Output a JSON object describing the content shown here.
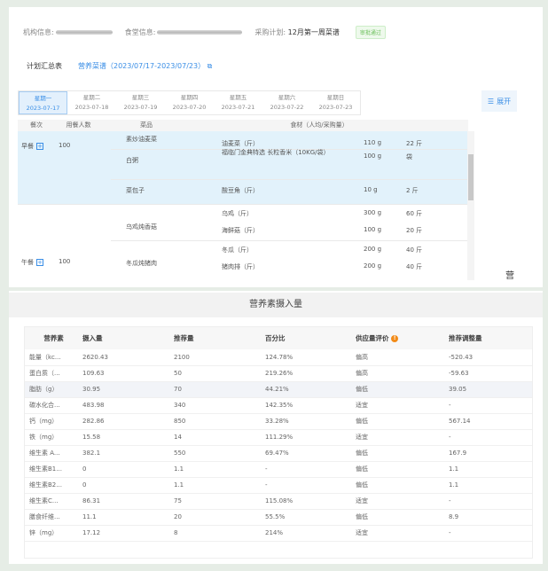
{
  "header": {
    "org_label": "机构信息:",
    "canteen_label": "食堂信息:",
    "plan_label": "采购计划:",
    "plan_value": "12月第一周菜谱",
    "status_badge": "审批通过"
  },
  "title_row": {
    "title": "计划汇总表",
    "link": "营养菜谱（2023/07/17-2023/07/23）",
    "link_icon": "external-link-icon"
  },
  "days": [
    {
      "name": "星期一",
      "date": "2023-07-17",
      "active": true
    },
    {
      "name": "星期二",
      "date": "2023-07-18"
    },
    {
      "name": "星期三",
      "date": "2023-07-19"
    },
    {
      "name": "星期四",
      "date": "2023-07-20"
    },
    {
      "name": "星期五",
      "date": "2023-07-21"
    },
    {
      "name": "星期六",
      "date": "2023-07-22"
    },
    {
      "name": "星期日",
      "date": "2023-07-23"
    }
  ],
  "expand_label": "展开",
  "meal_table": {
    "headers": [
      "餐次",
      "用餐人数",
      "菜品",
      "食材（人均/采购量）"
    ],
    "breakfast": {
      "meal": "早餐",
      "count": "100",
      "dishes": [
        {
          "dish": "素炒油麦菜",
          "items": [
            [
              "油麦菜（斤）",
              "110 g",
              "22 斤"
            ]
          ]
        },
        {
          "dish": "白粥",
          "items": [
            [
              "福临门金典特选 长粒香米（10KG/袋）",
              "100 g",
              "袋"
            ]
          ]
        },
        {
          "dish": "菜包子",
          "items": [
            [
              "酸豆角（斤）",
              "10 g",
              "2 斤"
            ]
          ]
        }
      ]
    },
    "lunch": {
      "meal": "午餐",
      "count": "100",
      "dishes": [
        {
          "dish": "乌鸡炖香菇",
          "items": [
            [
              "乌鸡（斤）",
              "300 g",
              "60 斤"
            ],
            [
              "海鲜菇（斤）",
              "100 g",
              "20 斤"
            ]
          ]
        },
        {
          "dish": "冬瓜炖猪肉",
          "items": [
            [
              "冬瓜（斤）",
              "200 g",
              "40 斤"
            ],
            [
              "猪肉排（斤）",
              "200 g",
              "40 斤"
            ]
          ]
        }
      ]
    }
  },
  "side_char": "营",
  "nutrition": {
    "title": "营养素摄入量",
    "headers": [
      "营养素",
      "摄入量",
      "推荐量",
      "百分比",
      "供应量评价",
      "推荐调整量"
    ],
    "rows": [
      [
        "能量（kc...",
        "2620.43",
        "2100",
        "124.78%",
        "偏高",
        "-520.43"
      ],
      [
        "蛋白质（...",
        "109.63",
        "50",
        "219.26%",
        "偏高",
        "-59.63"
      ],
      [
        "脂肪（g）",
        "30.95",
        "70",
        "44.21%",
        "偏低",
        "39.05"
      ],
      [
        "碳水化合...",
        "483.98",
        "340",
        "142.35%",
        "适宜",
        "-"
      ],
      [
        "钙（mg）",
        "282.86",
        "850",
        "33.28%",
        "偏低",
        "567.14"
      ],
      [
        "铁（mg）",
        "15.58",
        "14",
        "111.29%",
        "适宜",
        "-"
      ],
      [
        "维生素 A...",
        "382.1",
        "550",
        "69.47%",
        "偏低",
        "167.9"
      ],
      [
        "维生素B1...",
        "0",
        "1.1",
        "-",
        "偏低",
        "1.1"
      ],
      [
        "维生素B2...",
        "0",
        "1.1",
        "-",
        "偏低",
        "1.1"
      ],
      [
        "维生素C...",
        "86.31",
        "75",
        "115.08%",
        "适宜",
        "-"
      ],
      [
        "膳食纤维...",
        "11.1",
        "20",
        "55.5%",
        "偏低",
        "8.9"
      ],
      [
        "锌（mg）",
        "17.12",
        "8",
        "214%",
        "适宜",
        "-"
      ]
    ]
  },
  "colors": {
    "accent": "#3a8ee6",
    "high": "#f08a3c",
    "low": "#e0505a",
    "ok": "#3a8ee6",
    "row_highlight": "#e2f2fb"
  }
}
